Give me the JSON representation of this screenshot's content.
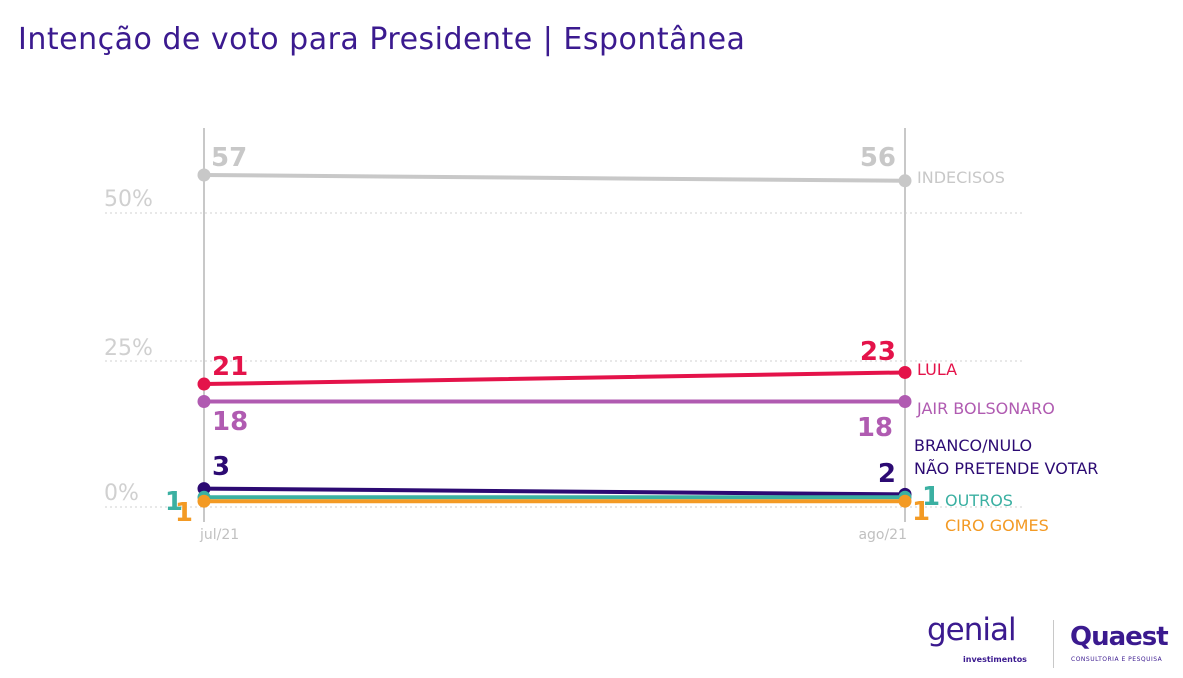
{
  "title": "Intenção de voto para Presidente | Espontânea",
  "chart_data": {
    "type": "line",
    "x": [
      "jul/21",
      "ago/21"
    ],
    "y_ticks": [
      "50%",
      "25%",
      "0%"
    ],
    "y_tick_values": [
      50,
      25,
      0
    ],
    "ylim": [
      0,
      60
    ],
    "grid": "horizontal dotted",
    "series": [
      {
        "name": "INDECISOS",
        "values": [
          57,
          56
        ],
        "color": "#c8c8c8"
      },
      {
        "name": "LULA",
        "values": [
          21,
          23
        ],
        "color": "#e4134a"
      },
      {
        "name": "JAIR BOLSONARO",
        "values": [
          18,
          18
        ],
        "color": "#b05bb1"
      },
      {
        "name": "BRANCO/NULO NÃO PRETENDE VOTAR",
        "name_lines": [
          "BRANCO/NULO",
          "NÃO PRETENDE VOTAR"
        ],
        "values": [
          3,
          2
        ],
        "color": "#2c0a73"
      },
      {
        "name": "OUTROS",
        "values": [
          1,
          1
        ],
        "color": "#3bb0a2"
      },
      {
        "name": "CIRO GOMES",
        "values": [
          1,
          1
        ],
        "color": "#f39a24"
      }
    ]
  },
  "logos": {
    "genial": "genial",
    "genial_sub": "investimentos",
    "quaest": "Quaest",
    "quaest_sub": "CONSULTORIA E PESQUISA"
  }
}
